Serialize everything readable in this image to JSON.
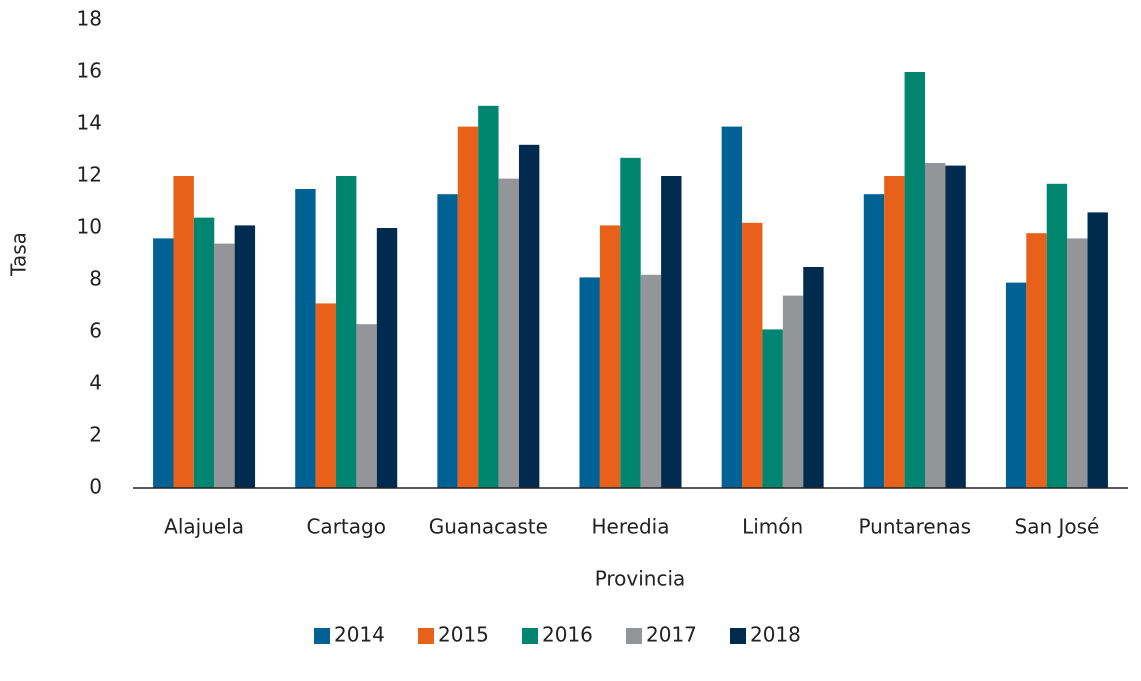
{
  "chart_data": {
    "type": "bar",
    "x_label": "Provincia",
    "y_label": "Tasa",
    "categories": [
      "Alajuela",
      "Cartago",
      "Guanacaste",
      "Heredia",
      "Limón",
      "Puntarenas",
      "San José"
    ],
    "series": [
      {
        "name": "2014",
        "color": "#006195",
        "values": [
          9.6,
          11.5,
          11.3,
          8.1,
          13.9,
          11.3,
          7.9
        ]
      },
      {
        "name": "2015",
        "color": "#e8611a",
        "values": [
          12.0,
          7.1,
          13.9,
          10.1,
          10.2,
          12.0,
          9.8
        ]
      },
      {
        "name": "2016",
        "color": "#008571",
        "values": [
          10.4,
          12.0,
          14.7,
          12.7,
          6.1,
          16.0,
          11.7
        ]
      },
      {
        "name": "2017",
        "color": "#939598",
        "values": [
          9.4,
          6.3,
          11.9,
          8.2,
          7.4,
          12.5,
          9.6
        ]
      },
      {
        "name": "2018",
        "color": "#002b4f",
        "values": [
          10.1,
          10.0,
          13.2,
          12.0,
          8.5,
          12.4,
          10.6
        ]
      }
    ],
    "ylim": [
      0,
      18
    ],
    "yticks": [
      0,
      2,
      4,
      6,
      8,
      10,
      12,
      14,
      16,
      18
    ],
    "grid": false,
    "legend": "bottom"
  }
}
